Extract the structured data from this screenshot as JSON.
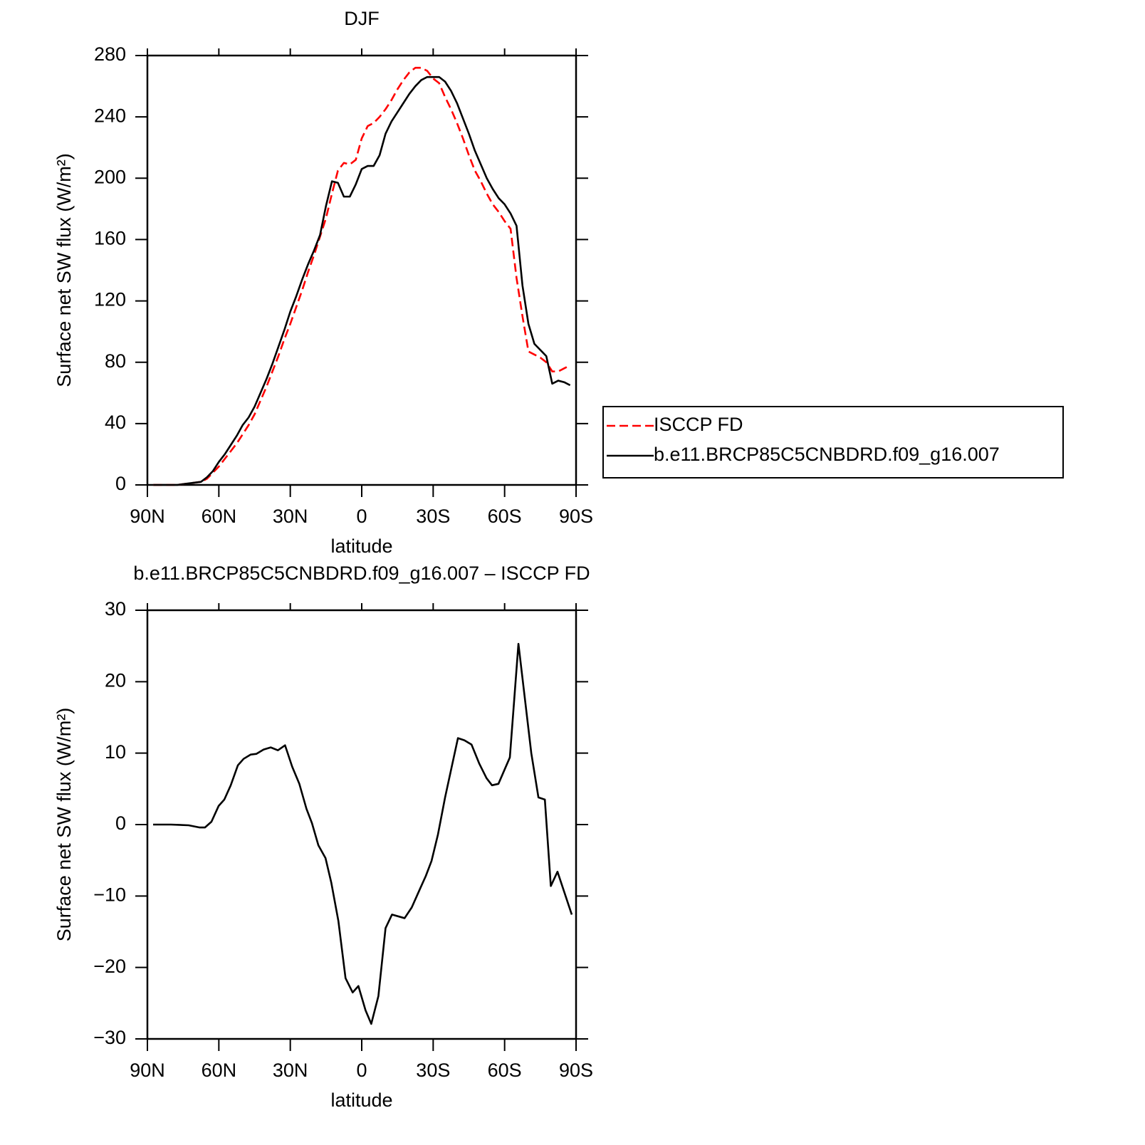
{
  "chart_data": [
    {
      "type": "line",
      "title": "DJF",
      "xlabel": "latitude",
      "ylabel": "Surface net SW flux (W/m²)",
      "x": [
        87.5,
        82.5,
        77.5,
        72.5,
        67.5,
        65,
        62.5,
        60,
        57.5,
        55,
        52.5,
        50,
        47.5,
        45,
        42.5,
        40,
        37.5,
        35,
        32.5,
        30,
        27.5,
        25,
        22.5,
        20,
        17.5,
        15,
        12.5,
        10,
        7.5,
        5,
        2.5,
        0,
        -2.5,
        -5,
        -7.5,
        -10,
        -12.5,
        -15,
        -17.5,
        -20,
        -22.5,
        -25,
        -27.5,
        -30,
        -32.5,
        -35,
        -37.5,
        -40,
        -42.5,
        -45,
        -47.5,
        -50,
        -52.5,
        -55,
        -57.5,
        -60,
        -62.5,
        -65,
        -67.5,
        -70,
        -72.5,
        -75,
        -77.5,
        -80,
        -82.5,
        -85,
        -87.5
      ],
      "series": [
        {
          "name": "ISCCP FD",
          "color": "#ff0000",
          "dash": true,
          "values": [
            0,
            0,
            0,
            1,
            2,
            4,
            8,
            12,
            17,
            22,
            27,
            33,
            39,
            46,
            55,
            64,
            74,
            84,
            95,
            105,
            116,
            127,
            139,
            150,
            162,
            174,
            190,
            205,
            210,
            209,
            212,
            226,
            234,
            236,
            240,
            245,
            251,
            258,
            264,
            269,
            272,
            272,
            270,
            265,
            262,
            253,
            245,
            236,
            226,
            215,
            205,
            198,
            190,
            183,
            178,
            172,
            167,
            135,
            110,
            87,
            85,
            83,
            80,
            74,
            74,
            76,
            78
          ]
        },
        {
          "name": "b.e11.BRCP85C5CNBDRD.f09_g16.007",
          "color": "#000000",
          "dash": false,
          "values": [
            0,
            0,
            0,
            1,
            2,
            5,
            9,
            15,
            20,
            26,
            32,
            39,
            44,
            51,
            60,
            69,
            79,
            90,
            101,
            113,
            123,
            134,
            144,
            153,
            163,
            182,
            198,
            197,
            188,
            188,
            196,
            206,
            208,
            208,
            215,
            229,
            237,
            243,
            249,
            255,
            260,
            264,
            266,
            266,
            266,
            263,
            257,
            249,
            239,
            229,
            218,
            209,
            200,
            193,
            187,
            183,
            177,
            169,
            130,
            105,
            92,
            88,
            84,
            66,
            68,
            67,
            65
          ]
        }
      ],
      "xlim": [
        90,
        -90
      ],
      "xticks": [
        {
          "value": 90,
          "label": "90N"
        },
        {
          "value": 60,
          "label": "60N"
        },
        {
          "value": 30,
          "label": "30N"
        },
        0,
        {
          "value": -30,
          "label": "30S"
        },
        {
          "value": -60,
          "label": "60S"
        },
        {
          "value": -90,
          "label": "90S"
        }
      ],
      "ylim": [
        0,
        280
      ],
      "yticks": [
        0,
        40,
        80,
        120,
        160,
        200,
        240,
        280
      ],
      "legend": "right"
    },
    {
      "type": "line",
      "title": "b.e11.BRCP85C5CNBDRD.f09_g16.007 – ISCCP FD",
      "xlabel": "latitude",
      "ylabel": "Surface net SW flux (W/m²)",
      "x": [
        87.6,
        80.1,
        72.7,
        68.2,
        65.8,
        63.1,
        60.1,
        57.7,
        55.0,
        52.0,
        49.6,
        46.6,
        44.2,
        41.2,
        38.2,
        35.2,
        32.2,
        29.2,
        26.2,
        23.2,
        20.9,
        18.2,
        15.2,
        12.8,
        9.8,
        6.8,
        3.8,
        1.4,
        -1.6,
        -4.0,
        -7.0,
        -10.0,
        -12.7,
        -18.0,
        -21.0,
        -24.6,
        -26.9,
        -29.3,
        -32.0,
        -35.0,
        -40.4,
        -43.1,
        -46.1,
        -49.4,
        -52.4,
        -54.7,
        -57.4,
        -62.2,
        -65.8,
        -71.2,
        -74.2,
        -76.9,
        -79.4,
        -82.2,
        -88.2
      ],
      "series": [
        {
          "color": "#000000",
          "dash": false,
          "values": [
            0,
            0,
            -0.1,
            -0.4,
            -0.4,
            0.4,
            2.6,
            3.5,
            5.5,
            8.3,
            9.2,
            9.8,
            9.9,
            10.5,
            10.8,
            10.4,
            11.1,
            8.1,
            5.7,
            2.2,
            0.2,
            -2.9,
            -4.7,
            -8.1,
            -13.5,
            -21.5,
            -23.5,
            -22.6,
            -26,
            -27.9,
            -24,
            -14.5,
            -12.6,
            -13.1,
            -11.6,
            -8.9,
            -7.2,
            -5.1,
            -1.4,
            3.8,
            12.1,
            11.8,
            11.2,
            8.5,
            6.5,
            5.5,
            5.7,
            9.4,
            25.3,
            10,
            3.8,
            3.5,
            -8.6,
            -6.6,
            -12.6
          ]
        }
      ],
      "xlim": [
        90,
        -90
      ],
      "xticks": [
        {
          "value": 90,
          "label": "90N"
        },
        {
          "value": 60,
          "label": "60N"
        },
        {
          "value": 30,
          "label": "30N"
        },
        0,
        {
          "value": -30,
          "label": "30S"
        },
        {
          "value": -60,
          "label": "60S"
        },
        {
          "value": -90,
          "label": "90S"
        }
      ],
      "ylim": [
        -30,
        30
      ],
      "yticks": [
        {
          "value": -30,
          "label": "−30"
        },
        {
          "value": -20,
          "label": "−20"
        },
        {
          "value": -10,
          "label": "−10"
        },
        0,
        10,
        20,
        30
      ]
    }
  ]
}
